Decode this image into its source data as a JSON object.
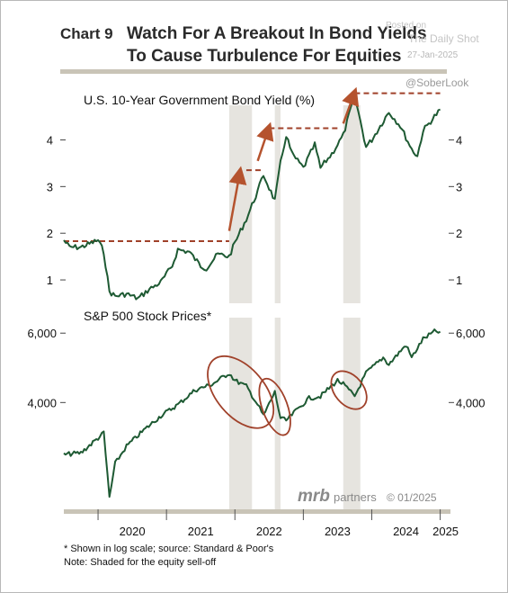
{
  "header": {
    "chart_label": "Chart 9",
    "title_line1": "Watch For A Breakout In Bond Yields",
    "title_line2": "To Cause Turbulence For Equities"
  },
  "watermark": {
    "posted_on": "Posted on",
    "site": "The Daily Shot",
    "date": "27-Jan-2025",
    "handle": "@SoberLook"
  },
  "footer": {
    "brand_mrb": "mrb",
    "brand_partners": "partners",
    "brand_date": "© 01/2025",
    "note1": "* Shown in log scale; source: Standard & Poor's",
    "note2": "Note: Shaded for the equity sell-off"
  },
  "colors": {
    "line": "#1e5a33",
    "dashed": "#a0412a",
    "arrow": "#b5532e",
    "shade": "#e6e4df",
    "rule": "#c9c4b7",
    "ellipse": "#a0412a"
  },
  "chart_data": [
    {
      "type": "line",
      "title": "U.S. 10-Year Government Bond Yield (%)",
      "yticks": [
        1,
        2,
        3,
        4
      ],
      "ylim": [
        0.5,
        5.05
      ],
      "x_ticks": [
        "2020",
        "2021",
        "2022",
        "2023",
        "2024",
        "2025"
      ],
      "series": [
        {
          "x": [
            "2019-07",
            "2019-08",
            "2019-10",
            "2020-01",
            "2020-02",
            "2020-03",
            "2020-04",
            "2020-06",
            "2020-08",
            "2020-10",
            "2020-12",
            "2021-02",
            "2021-03",
            "2021-05",
            "2021-07",
            "2021-08",
            "2021-10",
            "2021-12",
            "2022-01",
            "2022-03",
            "2022-05",
            "2022-06",
            "2022-08",
            "2022-09",
            "2022-10",
            "2022-11",
            "2023-01",
            "2023-03",
            "2023-04",
            "2023-06",
            "2023-08",
            "2023-10",
            "2023-11",
            "2023-12",
            "2024-01",
            "2024-04",
            "2024-06",
            "2024-08",
            "2024-09",
            "2024-10",
            "2024-12",
            "2025-01"
          ],
          "values": [
            1.85,
            1.7,
            1.7,
            1.85,
            1.6,
            0.75,
            0.65,
            0.7,
            0.6,
            0.8,
            0.95,
            1.3,
            1.65,
            1.6,
            1.3,
            1.25,
            1.55,
            1.5,
            1.8,
            2.3,
            2.9,
            3.25,
            2.7,
            3.5,
            4.1,
            3.7,
            3.4,
            3.9,
            3.4,
            3.7,
            4.1,
            4.95,
            4.4,
            3.85,
            4.0,
            4.6,
            4.3,
            3.8,
            3.65,
            4.2,
            4.5,
            4.65
          ]
        }
      ],
      "breakout_levels": [
        1.83,
        3.35,
        4.25,
        5.0
      ],
      "annotations": [
        "upward arrows at each breakout"
      ]
    },
    {
      "type": "line",
      "title": "S&P 500 Stock Prices*",
      "scale": "log",
      "yticks": [
        4000,
        6000
      ],
      "ytick_labels": [
        "4,000",
        "6,000"
      ],
      "ylim": [
        2200,
        6500
      ],
      "series": [
        {
          "x": [
            "2019-07",
            "2019-10",
            "2020-01",
            "2020-02",
            "2020-03",
            "2020-04",
            "2020-06",
            "2020-09",
            "2020-12",
            "2021-03",
            "2021-06",
            "2021-09",
            "2021-12",
            "2022-01",
            "2022-03",
            "2022-05",
            "2022-06",
            "2022-08",
            "2022-09",
            "2022-10",
            "2022-12",
            "2023-02",
            "2023-04",
            "2023-07",
            "2023-08",
            "2023-10",
            "2023-12",
            "2024-03",
            "2024-04",
            "2024-07",
            "2024-08",
            "2024-10",
            "2024-12",
            "2025-01"
          ],
          "values": [
            2950,
            2980,
            3250,
            3350,
            2300,
            2800,
            3100,
            3400,
            3700,
            3950,
            4300,
            4450,
            4750,
            4550,
            4400,
            3950,
            3700,
            4250,
            3650,
            3600,
            3850,
            4100,
            4150,
            4550,
            4450,
            4150,
            4750,
            5200,
            5000,
            5600,
            5200,
            5800,
            6050,
            6050
          ]
        }
      ],
      "annotations": [
        "ellipses around equity sell-offs"
      ]
    }
  ]
}
